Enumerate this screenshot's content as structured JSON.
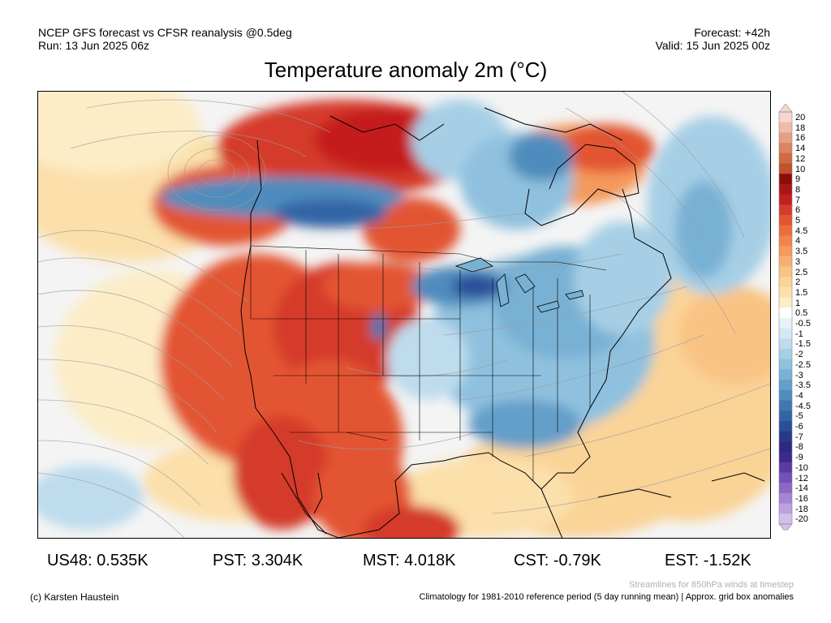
{
  "header": {
    "model_line": "NCEP GFS forecast vs CFSR reanalysis @0.5deg",
    "run_line": "Run: 13 Jun 2025 06z",
    "forecast_line": "Forecast: +42h",
    "valid_line": "Valid: 15 Jun 2025 00z"
  },
  "title": "Temperature anomaly 2m (°C)",
  "colorbar": {
    "labels": [
      "20",
      "18",
      "16",
      "14",
      "12",
      "10",
      "9",
      "8",
      "7",
      "6",
      "5",
      "4.5",
      "4",
      "3.5",
      "3",
      "2.5",
      "2",
      "1.5",
      "1",
      "0.5",
      "-0.5",
      "-1",
      "-1.5",
      "-2",
      "-2.5",
      "-3",
      "-3.5",
      "-4",
      "-4.5",
      "-5",
      "-6",
      "-7",
      "-8",
      "-9",
      "-10",
      "-12",
      "-14",
      "-16",
      "-18",
      "-20"
    ],
    "colors": [
      "#f6d7cd",
      "#eebca8",
      "#e4a085",
      "#d98563",
      "#ce6a44",
      "#c2502b",
      "#8c0c0c",
      "#a81616",
      "#c41f1f",
      "#d53a2a",
      "#e35433",
      "#ea6d3f",
      "#f0844b",
      "#f49a5b",
      "#f8b06f",
      "#f9c383",
      "#fad397",
      "#fbe0ab",
      "#fcedc7",
      "#ffffff",
      "#eaf2f8",
      "#d4e8f4",
      "#bedced",
      "#a6cfe6",
      "#8fc1de",
      "#79b1d4",
      "#649fc9",
      "#508cbd",
      "#3f77b0",
      "#3265a6",
      "#2b4e98",
      "#29398a",
      "#2b2a7e",
      "#3e2a8e",
      "#5a3aa3",
      "#7551b7",
      "#8d68c6",
      "#a584d3",
      "#bca0df",
      "#d2bfeb"
    ]
  },
  "stats": {
    "us48": "US48: 0.535K",
    "pst": "PST: 3.304K",
    "mst": "MST: 4.018K",
    "cst": "CST: -0.79K",
    "est": "EST: -1.52K"
  },
  "footer": {
    "streamline_note": "Streamlines for 850hPa winds at timestep",
    "copyright": "(c) Karsten Haustein",
    "climatology_note": "Climatology for 1981-2010 reference period (5 day running mean) | Approx. grid box anomalies"
  }
}
